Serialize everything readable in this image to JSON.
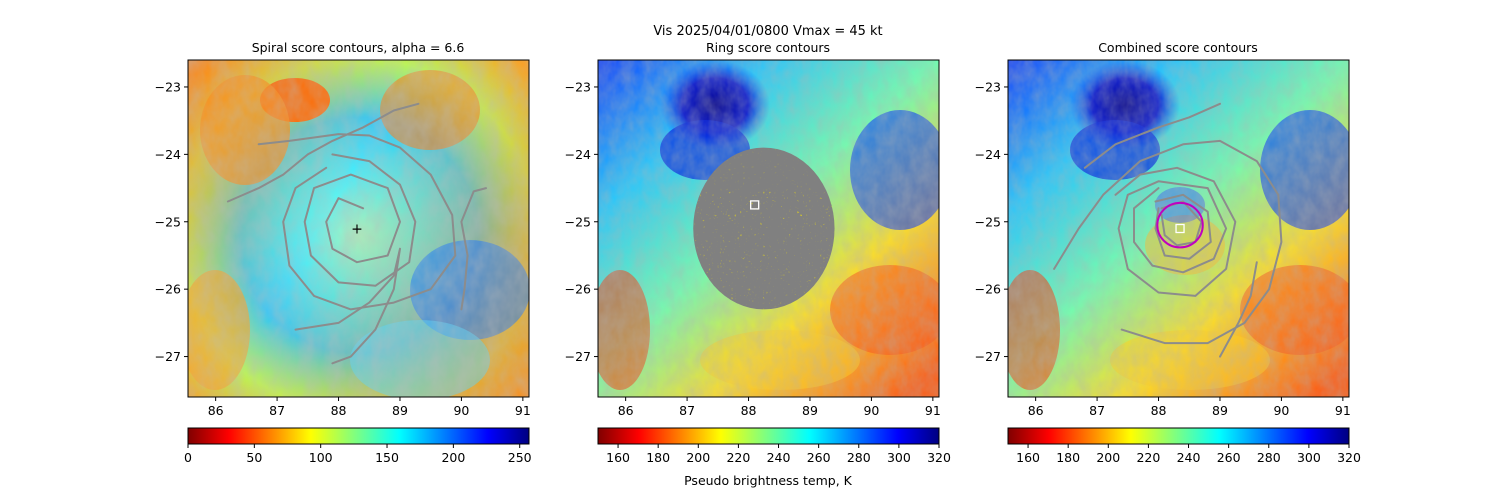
{
  "figure": {
    "suptitle_line1": "Vis  2025/04/01/0800    Vmax = 45 kt",
    "colorbar_label": "Pseudo brightness temp, K"
  },
  "axes": {
    "xticks": [
      86,
      87,
      88,
      89,
      90,
      91
    ],
    "yticks": [
      -23,
      -24,
      -25,
      -26,
      -27
    ],
    "xlim": [
      85.55,
      91.1
    ],
    "ylim": [
      -27.6,
      -22.6
    ]
  },
  "chart_data": [
    {
      "type": "heatmap",
      "name": "spiral",
      "title": "Spiral score contours, alpha =  6.6",
      "colormap": "jet_r",
      "colorbar": {
        "ticks": [
          0,
          50,
          100,
          150,
          200,
          250
        ],
        "range": [
          0,
          257
        ]
      },
      "center_marker": {
        "lon": 88.3,
        "lat": -25.1,
        "symbol": "+",
        "color": "#ffffff"
      },
      "contour_color": "#8c8c8c",
      "contours": [
        [
          [
            86.2,
            -24.7
          ],
          [
            86.7,
            -24.5
          ],
          [
            87.1,
            -24.3
          ],
          [
            87.5,
            -24.0
          ],
          [
            87.9,
            -23.8
          ],
          [
            88.4,
            -23.6
          ],
          [
            88.9,
            -23.35
          ],
          [
            89.3,
            -23.25
          ]
        ],
        [
          [
            86.7,
            -23.85
          ],
          [
            87.2,
            -23.8
          ],
          [
            87.6,
            -23.75
          ],
          [
            88.0,
            -23.7
          ],
          [
            88.5,
            -23.72
          ],
          [
            89.0,
            -23.9
          ],
          [
            89.5,
            -24.3
          ],
          [
            89.85,
            -24.9
          ],
          [
            89.9,
            -25.5
          ],
          [
            89.5,
            -26.0
          ],
          [
            88.9,
            -26.2
          ],
          [
            88.2,
            -26.3
          ],
          [
            87.6,
            -26.1
          ],
          [
            87.2,
            -25.65
          ],
          [
            87.1,
            -25.0
          ],
          [
            87.3,
            -24.5
          ],
          [
            87.8,
            -24.2
          ]
        ],
        [
          [
            87.9,
            -24.0
          ],
          [
            88.5,
            -24.1
          ],
          [
            89.0,
            -24.45
          ],
          [
            89.25,
            -25.0
          ],
          [
            89.15,
            -25.6
          ],
          [
            88.6,
            -25.95
          ],
          [
            88.0,
            -25.9
          ],
          [
            87.55,
            -25.5
          ],
          [
            87.45,
            -25.0
          ],
          [
            87.6,
            -24.5
          ],
          [
            88.2,
            -24.3
          ],
          [
            88.8,
            -24.5
          ],
          [
            89.0,
            -25.0
          ],
          [
            88.8,
            -25.5
          ],
          [
            88.3,
            -25.6
          ],
          [
            87.9,
            -25.4
          ],
          [
            87.8,
            -25.0
          ],
          [
            88.0,
            -24.65
          ],
          [
            88.4,
            -24.8
          ]
        ],
        [
          [
            90.4,
            -24.5
          ],
          [
            90.2,
            -24.55
          ],
          [
            90.0,
            -25.0
          ],
          [
            90.1,
            -25.5
          ],
          [
            90.05,
            -26.0
          ],
          [
            90.0,
            -26.3
          ]
        ],
        [
          [
            87.3,
            -26.6
          ],
          [
            88.0,
            -26.5
          ],
          [
            88.5,
            -26.2
          ],
          [
            88.9,
            -25.8
          ],
          [
            89.0,
            -25.4
          ],
          [
            88.9,
            -26.0
          ],
          [
            88.6,
            -26.6
          ],
          [
            88.2,
            -27.0
          ],
          [
            87.9,
            -27.1
          ]
        ]
      ]
    },
    {
      "type": "heatmap",
      "name": "ring",
      "title": "Ring score contours",
      "colormap": "jet",
      "colorbar": {
        "ticks": [
          160,
          180,
          200,
          220,
          240,
          260,
          280,
          300,
          320
        ],
        "range": [
          150,
          320
        ]
      },
      "masked_region": {
        "center_lon": 88.25,
        "center_lat": -25.1,
        "radius_lon": 1.15,
        "radius_lat": 1.2,
        "fill": "#808080"
      },
      "center_marker": {
        "lon": 88.1,
        "lat": -24.75,
        "symbol": "square",
        "color": "#ffffff"
      }
    },
    {
      "type": "heatmap",
      "name": "combined",
      "title": "Combined score contours",
      "colormap": "jet",
      "colorbar": {
        "ticks": [
          160,
          180,
          200,
          220,
          240,
          260,
          280,
          300,
          320
        ],
        "range": [
          150,
          320
        ]
      },
      "center_marker": {
        "lon": 88.35,
        "lat": -25.1,
        "symbol": "square",
        "color": "#ffffff"
      },
      "rmw_circle": {
        "lon": 88.35,
        "lat": -25.05,
        "radius_lon": 0.37,
        "radius_lat": 0.33,
        "color": "#c000c0"
      },
      "contour_color": "#8c8c8c",
      "contours": [
        [
          [
            86.3,
            -25.7
          ],
          [
            86.7,
            -25.1
          ],
          [
            87.1,
            -24.6
          ],
          [
            87.7,
            -24.1
          ],
          [
            88.4,
            -23.85
          ],
          [
            89.0,
            -23.8
          ],
          [
            89.6,
            -24.1
          ],
          [
            89.95,
            -24.6
          ],
          [
            90.0,
            -25.3
          ],
          [
            89.8,
            -26.0
          ],
          [
            89.4,
            -26.5
          ],
          [
            88.8,
            -26.8
          ],
          [
            88.1,
            -26.8
          ],
          [
            87.4,
            -26.6
          ]
        ],
        [
          [
            86.8,
            -24.2
          ],
          [
            87.3,
            -23.85
          ],
          [
            88.0,
            -23.6
          ],
          [
            88.5,
            -23.45
          ],
          [
            89.0,
            -23.25
          ]
        ],
        [
          [
            87.3,
            -24.6
          ],
          [
            87.7,
            -24.3
          ],
          [
            88.3,
            -24.2
          ],
          [
            88.9,
            -24.4
          ],
          [
            89.25,
            -25.0
          ],
          [
            89.1,
            -25.7
          ],
          [
            88.6,
            -26.1
          ],
          [
            88.0,
            -26.05
          ],
          [
            87.5,
            -25.7
          ],
          [
            87.35,
            -25.1
          ],
          [
            87.5,
            -24.6
          ],
          [
            88.0,
            -24.4
          ],
          [
            88.8,
            -24.5
          ],
          [
            89.1,
            -25.1
          ],
          [
            88.9,
            -25.55
          ],
          [
            88.4,
            -25.75
          ],
          [
            87.9,
            -25.65
          ],
          [
            87.6,
            -25.3
          ],
          [
            87.6,
            -24.8
          ],
          [
            88.0,
            -24.5
          ]
        ],
        [
          [
            87.95,
            -24.7
          ],
          [
            88.4,
            -24.6
          ],
          [
            88.8,
            -24.85
          ],
          [
            88.85,
            -25.3
          ],
          [
            88.5,
            -25.55
          ],
          [
            88.1,
            -25.5
          ],
          [
            87.95,
            -25.1
          ],
          [
            88.0,
            -24.8
          ]
        ],
        [
          [
            88.05,
            -24.8
          ],
          [
            88.4,
            -24.7
          ],
          [
            88.7,
            -25.0
          ],
          [
            88.6,
            -25.3
          ],
          [
            88.3,
            -25.35
          ],
          [
            88.1,
            -25.2
          ],
          [
            88.05,
            -24.9
          ]
        ],
        [
          [
            89.0,
            -27.0
          ],
          [
            89.3,
            -26.5
          ],
          [
            89.5,
            -26.1
          ],
          [
            89.6,
            -25.6
          ]
        ]
      ]
    }
  ]
}
